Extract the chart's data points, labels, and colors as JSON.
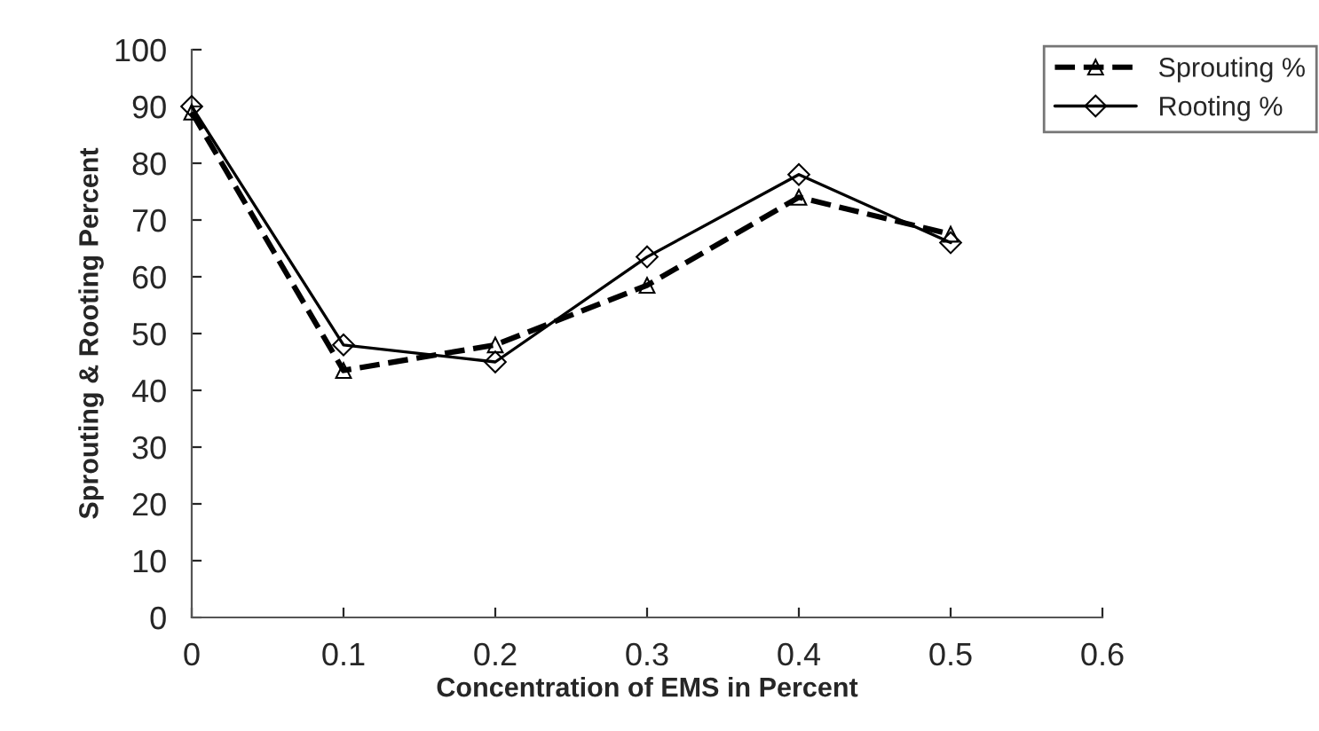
{
  "chart_data": {
    "type": "line",
    "xlabel": "Concentration of EMS in Percent",
    "ylabel": "Sprouting & Rooting Percent",
    "x": [
      0,
      0.1,
      0.2,
      0.3,
      0.4,
      0.5
    ],
    "series": [
      {
        "name": "Sprouting %",
        "color": "#000000",
        "values": [
          89,
          43.5,
          48,
          58.5,
          74,
          67.5
        ],
        "marker": "triangle",
        "line_style": "dashed"
      },
      {
        "name": "Rooting %",
        "color": "#000000",
        "values": [
          90,
          48,
          45,
          63.5,
          78,
          66
        ],
        "marker": "diamond",
        "line_style": "solid"
      }
    ],
    "xlim": [
      0,
      0.6
    ],
    "xticks": [
      {
        "value": 0,
        "label": "0"
      },
      0.1,
      0.2,
      0.3,
      0.4,
      0.5,
      0.6
    ],
    "ylim": [
      0,
      100
    ],
    "yticks": [
      0,
      10,
      20,
      30,
      40,
      50,
      60,
      70,
      80,
      90,
      100
    ],
    "grid": false,
    "legend": "top right"
  }
}
